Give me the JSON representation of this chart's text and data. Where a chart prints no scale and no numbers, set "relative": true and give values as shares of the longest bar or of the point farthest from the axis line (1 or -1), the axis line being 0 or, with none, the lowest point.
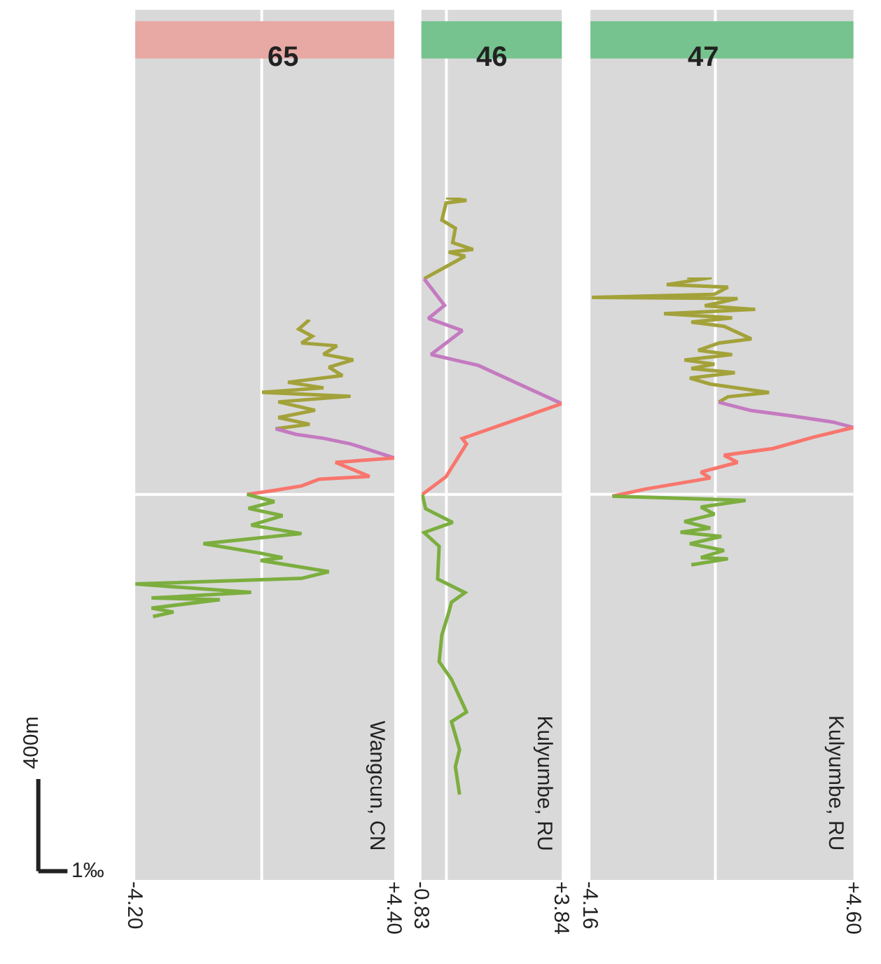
{
  "chart_data": [
    {
      "type": "line",
      "title": "65",
      "relative": true,
      "tick_labels": "x",
      "xlim": [
        -4.2,
        4.4
      ],
      "xticks": [
        {
          "value": -4.2,
          "label": "-4.20"
        },
        {
          "value": 4.4,
          "label": "+4.40"
        }
      ],
      "ref_lines": [
        {
          "axis": "x",
          "value": 0,
          "color": "#ffffff"
        },
        {
          "axis": "y",
          "value": 0.688,
          "color": "#ffffff"
        }
      ],
      "annotations": [
        "Wangcun, CN",
        "400m",
        "1‰"
      ],
      "series": [
        {
          "color": "#a3a23a",
          "x": [
            1.59,
            1.23,
            1.68,
            1.32,
            2.5,
            2.05,
            3.04,
            2.23,
            2.68,
            0.87,
            2.05,
            0.01,
            2.95,
            0.55,
            1.77,
            0.55,
            1.59,
            0.46
          ],
          "values": [
            1.0,
            0.983,
            0.97,
            0.958,
            0.953,
            0.938,
            0.928,
            0.915,
            0.9,
            0.888,
            0.878,
            0.87,
            0.863,
            0.853,
            0.838,
            0.825,
            0.813,
            0.805
          ]
        },
        {
          "color": "#c47ac0",
          "x": [
            0.46,
            1.14,
            2.05,
            2.95,
            3.72,
            4.4
          ],
          "values": [
            0.805,
            0.795,
            0.788,
            0.778,
            0.765,
            0.753
          ]
        },
        {
          "color": "#f8766d",
          "x": [
            4.4,
            2.45,
            3.58,
            1.91,
            1.32,
            0.42,
            -0.49
          ],
          "values": [
            0.753,
            0.745,
            0.72,
            0.715,
            0.703,
            0.695,
            0.688
          ]
        },
        {
          "color": "#7cae3f",
          "x": [
            -0.49,
            0.42,
            -0.44,
            0.69,
            -0.35,
            1.32,
            -1.94,
            -0.04,
            0.69,
            -0.04,
            2.23,
            1.32,
            -4.2,
            -0.35,
            -3.66,
            -1.39,
            -3.66,
            -2.93,
            -3.61
          ],
          "values": [
            0.688,
            0.675,
            0.663,
            0.65,
            0.633,
            0.618,
            0.6,
            0.583,
            0.575,
            0.57,
            0.55,
            0.538,
            0.528,
            0.513,
            0.503,
            0.5,
            0.485,
            0.478,
            0.47
          ]
        }
      ]
    },
    {
      "type": "line",
      "title": "46",
      "relative": true,
      "tick_labels": "x",
      "xlim": [
        -0.83,
        3.84
      ],
      "xticks": [
        {
          "value": -0.83,
          "label": "-0.83"
        },
        {
          "value": 3.84,
          "label": "+3.84"
        }
      ],
      "ref_lines": [
        {
          "axis": "x",
          "value": 0,
          "color": "#ffffff"
        },
        {
          "axis": "y",
          "value": 0.565,
          "color": "#ffffff"
        }
      ],
      "annotations": [
        "Kulyumbe, RU"
      ],
      "series": [
        {
          "color": "#a3a23a",
          "x": [
            -0.01,
            0.67,
            -0.01,
            -0.15,
            0.3,
            0.21,
            0.89,
            0.08,
            0.62,
            -0.74
          ],
          "values": [
            1.0,
            0.996,
            0.992,
            0.967,
            0.955,
            0.934,
            0.924,
            0.92,
            0.914,
            0.881
          ]
        },
        {
          "color": "#c47ac0",
          "x": [
            -0.74,
            -0.06,
            -0.6,
            0.53,
            -0.51,
            1.07,
            3.84
          ],
          "values": [
            0.881,
            0.842,
            0.823,
            0.805,
            0.77,
            0.754,
            0.698
          ]
        },
        {
          "color": "#f8766d",
          "x": [
            3.84,
            0.53,
            0.67,
            -0.01,
            -0.8
          ],
          "values": [
            0.698,
            0.647,
            0.639,
            0.591,
            0.565
          ]
        },
        {
          "color": "#7cae3f",
          "x": [
            -0.8,
            -0.69,
            0.21,
            -0.74,
            -0.24,
            -0.29,
            0.62,
            0.17,
            0.08,
            -0.15,
            -0.24,
            0.17,
            0.67,
            0.17,
            0.44,
            0.3,
            0.44
          ],
          "values": [
            0.565,
            0.544,
            0.524,
            0.509,
            0.489,
            0.441,
            0.421,
            0.407,
            0.392,
            0.359,
            0.32,
            0.294,
            0.246,
            0.232,
            0.191,
            0.166,
            0.125
          ]
        }
      ]
    },
    {
      "type": "line",
      "title": "47",
      "relative": true,
      "tick_labels": "x",
      "xlim": [
        -4.16,
        4.6
      ],
      "xticks": [
        {
          "value": -4.16,
          "label": "-4.16"
        },
        {
          "value": 4.6,
          "label": "+4.60"
        }
      ],
      "ref_lines": [
        {
          "axis": "x",
          "value": 0,
          "color": "#ffffff"
        },
        {
          "axis": "y",
          "value": 0.64,
          "color": "#ffffff"
        }
      ],
      "annotations": [
        "Kulyumbe, RU"
      ],
      "series": [
        {
          "color": "#a3a23a",
          "x": [
            -0.94,
            -0.12,
            -1.62,
            0.42,
            -0.03,
            -4.11,
            0.74,
            -0.35,
            1.33,
            -1.71,
            0.56,
            -0.8,
            0.29,
            1.2,
            0.11,
            -0.57,
            0.56,
            -1.03,
            -0.03,
            -0.8,
            0.65,
            -0.85,
            -0.17,
            1.79,
            0.42,
            0.11
          ],
          "values": [
            1.0,
            1.0,
            0.988,
            0.984,
            0.972,
            0.967,
            0.965,
            0.953,
            0.947,
            0.94,
            0.933,
            0.926,
            0.919,
            0.898,
            0.891,
            0.879,
            0.872,
            0.863,
            0.856,
            0.849,
            0.842,
            0.833,
            0.823,
            0.809,
            0.802,
            0.793
          ]
        },
        {
          "color": "#c47ac0",
          "x": [
            0.11,
            1.2,
            2.56,
            3.92,
            4.6
          ],
          "values": [
            0.793,
            0.779,
            0.77,
            0.76,
            0.751
          ]
        },
        {
          "color": "#f8766d",
          "x": [
            4.6,
            3.28,
            1.92,
            0.29,
            0.74,
            -0.48,
            -0.17,
            -2.3,
            -3.43
          ],
          "values": [
            0.751,
            0.735,
            0.716,
            0.705,
            0.693,
            0.677,
            0.667,
            0.649,
            0.637
          ]
        },
        {
          "color": "#7cae3f",
          "x": [
            -3.43,
            1.01,
            -0.48,
            -0.03,
            -1.03,
            -0.17,
            -1.16,
            0.2,
            -0.85,
            0.29,
            -0.48,
            0.42,
            -0.8
          ],
          "values": [
            0.637,
            0.63,
            0.619,
            0.607,
            0.595,
            0.584,
            0.577,
            0.57,
            0.558,
            0.547,
            0.535,
            0.533,
            0.523
          ]
        }
      ]
    }
  ]
}
